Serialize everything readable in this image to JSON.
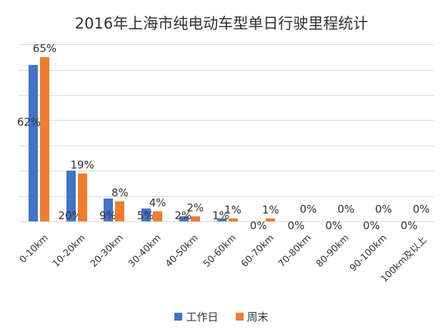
{
  "chart_data": {
    "type": "bar",
    "title": "2016年上海市纯电动车型单日行驶里程统计",
    "categories": [
      "0-10km",
      "10-20km",
      "20-30km",
      "30-40km",
      "40-50km",
      "50-60km",
      "60-70km",
      "70-80km",
      "80-90km",
      "90-100km",
      "100km及以上"
    ],
    "series": [
      {
        "key": "workday",
        "name": "工作日",
        "color": "#4472C4",
        "values": [
          62,
          20,
          9,
          5,
          2,
          1,
          0,
          0,
          0,
          0,
          0
        ]
      },
      {
        "key": "weekend",
        "name": "周末",
        "color": "#ED7D31",
        "values": [
          65,
          19,
          8,
          4,
          2,
          1,
          1,
          0,
          0,
          0,
          0
        ]
      }
    ],
    "value_suffix": "%",
    "xlabel": "",
    "ylabel": "",
    "ylim": [
      0,
      70
    ],
    "grid_step": 10,
    "grid_color": "#d9d9d9",
    "grid": "horizontal",
    "y_axis_labels_visible": false,
    "data_labels_visible": true,
    "x_tick_rotation_deg": -45,
    "legend_position": "bottom"
  }
}
